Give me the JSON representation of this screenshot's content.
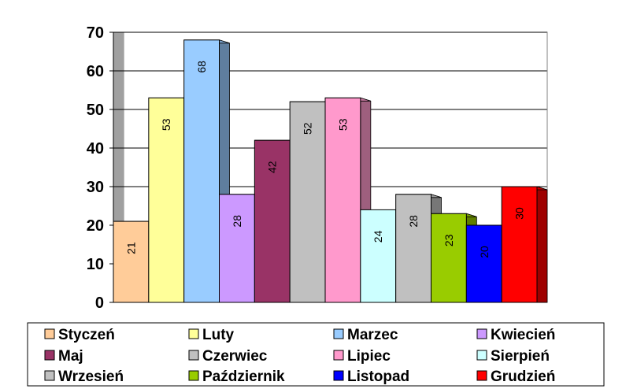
{
  "chart_data": {
    "type": "bar",
    "style": "3d",
    "categories": [
      "Styczeń",
      "Luty",
      "Marzec",
      "Kwiecień",
      "Maj",
      "Czerwiec",
      "Lipiec",
      "Sierpień",
      "Wrzesień",
      "Październik",
      "Listopad",
      "Grudzień"
    ],
    "values": [
      21,
      53,
      68,
      28,
      42,
      52,
      53,
      24,
      28,
      23,
      20,
      30
    ],
    "colors": [
      "#FFCC99",
      "#FFFF99",
      "#99CCFF",
      "#CC99FF",
      "#993366",
      "#C0C0C0",
      "#FF99CC",
      "#CCFFFF",
      "#C0C0C0",
      "#99CC00",
      "#0000FF",
      "#FF0000"
    ],
    "ylim": [
      0,
      70
    ],
    "yticks": [
      0,
      10,
      20,
      30,
      40,
      50,
      60,
      70
    ],
    "grid": true,
    "legend": "bottom",
    "title": "",
    "xlabel": "",
    "ylabel": "",
    "data_labels": true,
    "data_label_rotation": -90
  }
}
